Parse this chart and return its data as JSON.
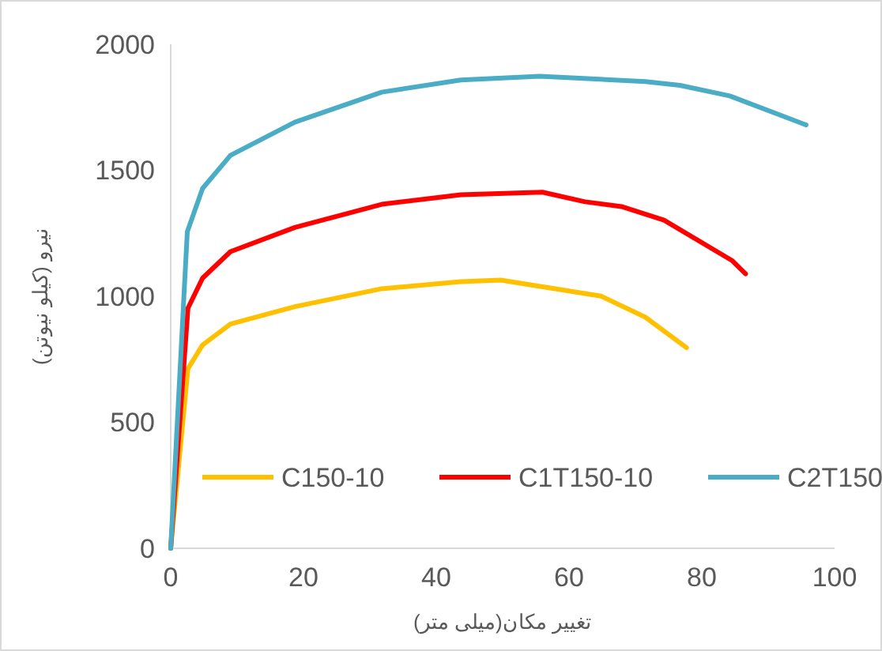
{
  "chart_data": {
    "type": "line",
    "xlabel": "تغییر مکان(میلی متر)",
    "ylabel": "نیرو (کیلو نیوتن)",
    "xlim": [
      0,
      100
    ],
    "ylim": [
      0,
      2000
    ],
    "xticks": [
      0,
      20,
      40,
      60,
      80,
      100
    ],
    "yticks": [
      0,
      500,
      1000,
      1500,
      2000
    ],
    "grid": false,
    "legend": "bottom",
    "marker": "none",
    "line_style": "solid",
    "series": [
      {
        "name": "C150-10",
        "color": "#ffc000",
        "x": [
          0,
          2.6,
          4.8,
          9,
          18.7,
          31.8,
          43.7,
          49.7,
          64.8,
          71.5,
          77.7
        ],
        "values": [
          0,
          713,
          807,
          890,
          959,
          1030,
          1058,
          1064,
          1001,
          917,
          796
        ]
      },
      {
        "name": "C1T150-10",
        "color": "#ff0000",
        "x": [
          0,
          2.6,
          4.8,
          9,
          18.7,
          31.8,
          43.7,
          56,
          62.4,
          67.9,
          74.3,
          84.6,
          86.6
        ],
        "values": [
          0,
          953,
          1072,
          1177,
          1273,
          1365,
          1403,
          1413,
          1375,
          1356,
          1302,
          1141,
          1089
        ]
      },
      {
        "name": "C2T150",
        "color": "#4bacc6",
        "x": [
          0,
          2.5,
          4.8,
          9,
          18.7,
          31.8,
          43.7,
          55.6,
          71.5,
          76.7,
          84.2,
          95.7
        ],
        "values": [
          0,
          1256,
          1428,
          1559,
          1691,
          1810,
          1858,
          1873,
          1852,
          1837,
          1795,
          1680
        ]
      }
    ]
  }
}
